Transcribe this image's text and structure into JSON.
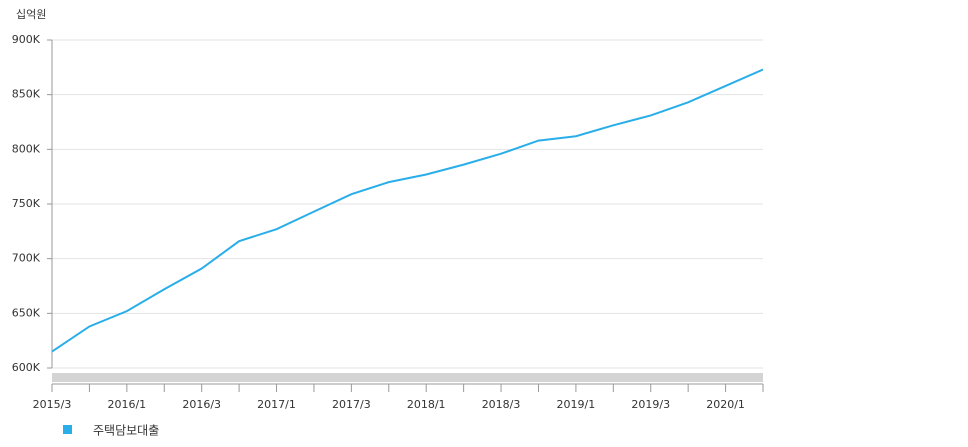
{
  "chart_data": {
    "type": "line",
    "y_unit": "십억원",
    "categories": [
      "2015/3",
      null,
      "2016/1",
      null,
      "2016/3",
      null,
      "2017/1",
      null,
      "2017/3",
      null,
      "2018/1",
      null,
      "2018/3",
      null,
      "2019/1",
      null,
      "2019/3",
      null,
      "2020/1",
      null
    ],
    "series": [
      {
        "name": "주택담보대출",
        "color": "#29aee9",
        "values": [
          615000,
          638000,
          652000,
          672000,
          691000,
          716000,
          727000,
          743000,
          759000,
          770000,
          777000,
          786000,
          796000,
          808000,
          812000,
          822000,
          831000,
          843000,
          858000,
          873000
        ]
      }
    ],
    "ylim": [
      600000,
      900000
    ],
    "yticks": [
      {
        "value": 600000,
        "label": "600K"
      },
      {
        "value": 650000,
        "label": "650K"
      },
      {
        "value": 700000,
        "label": "700K"
      },
      {
        "value": 750000,
        "label": "750K"
      },
      {
        "value": 800000,
        "label": "800K"
      },
      {
        "value": 850000,
        "label": "850K"
      },
      {
        "value": 900000,
        "label": "900K"
      }
    ],
    "grid": true
  }
}
